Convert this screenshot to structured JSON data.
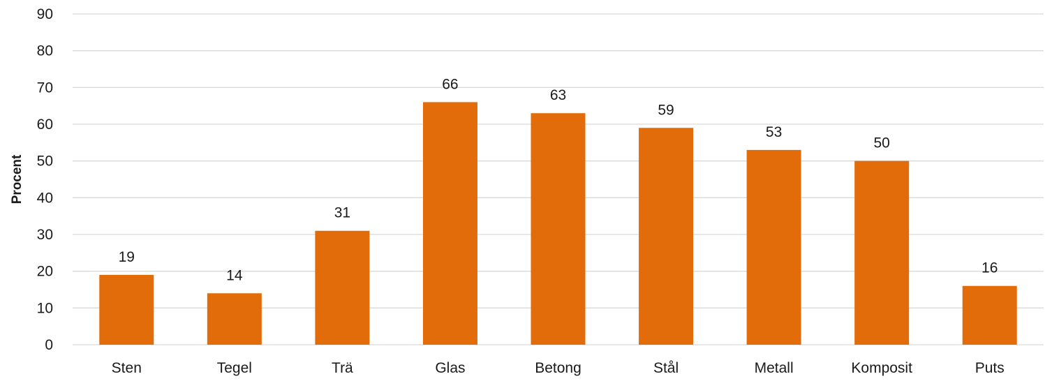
{
  "chart_data": {
    "type": "bar",
    "title": "",
    "xlabel": "",
    "ylabel": "Procent",
    "categories": [
      "Sten",
      "Tegel",
      "Trä",
      "Glas",
      "Betong",
      "Stål",
      "Metall",
      "Komposit",
      "Puts"
    ],
    "values": [
      19,
      14,
      31,
      66,
      63,
      59,
      53,
      50,
      16
    ],
    "ylim": [
      0,
      90
    ],
    "yticks": [
      0,
      10,
      20,
      30,
      40,
      50,
      60,
      70,
      80,
      90
    ],
    "grid": true,
    "legend": "none",
    "bar_color": "#E36C0A",
    "grid_color": "#D9D9D9"
  }
}
